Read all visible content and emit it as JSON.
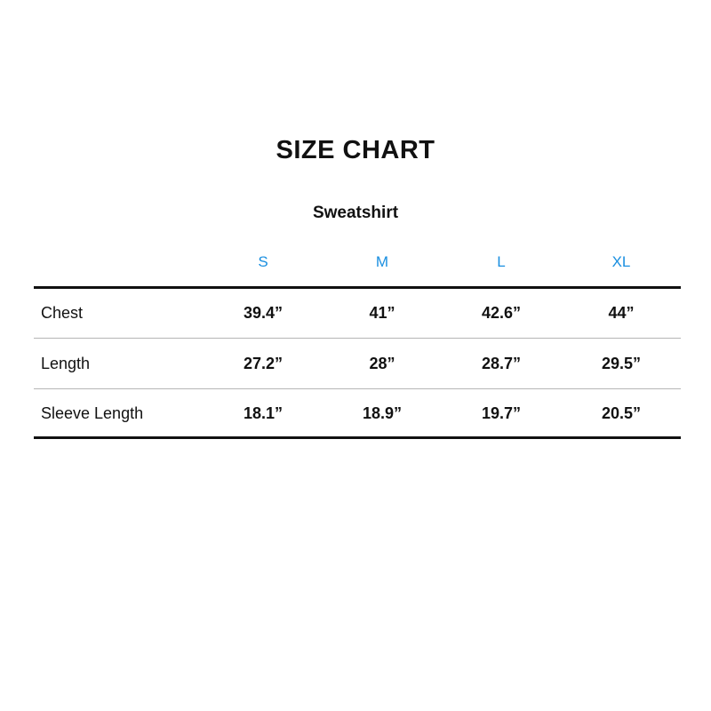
{
  "title": "SIZE CHART",
  "subtitle": "Sweatshirt",
  "accent_color": "#1a8fe0",
  "sizes": [
    "S",
    "M",
    "L",
    "XL"
  ],
  "rows": [
    {
      "label": "Chest",
      "values": [
        "39.4”",
        "41”",
        "42.6”",
        "44”"
      ]
    },
    {
      "label": "Length",
      "values": [
        "27.2”",
        "28”",
        "28.7”",
        "29.5”"
      ]
    },
    {
      "label": "Sleeve Length",
      "values": [
        "18.1”",
        "18.9”",
        "19.7”",
        "20.5”"
      ]
    }
  ]
}
